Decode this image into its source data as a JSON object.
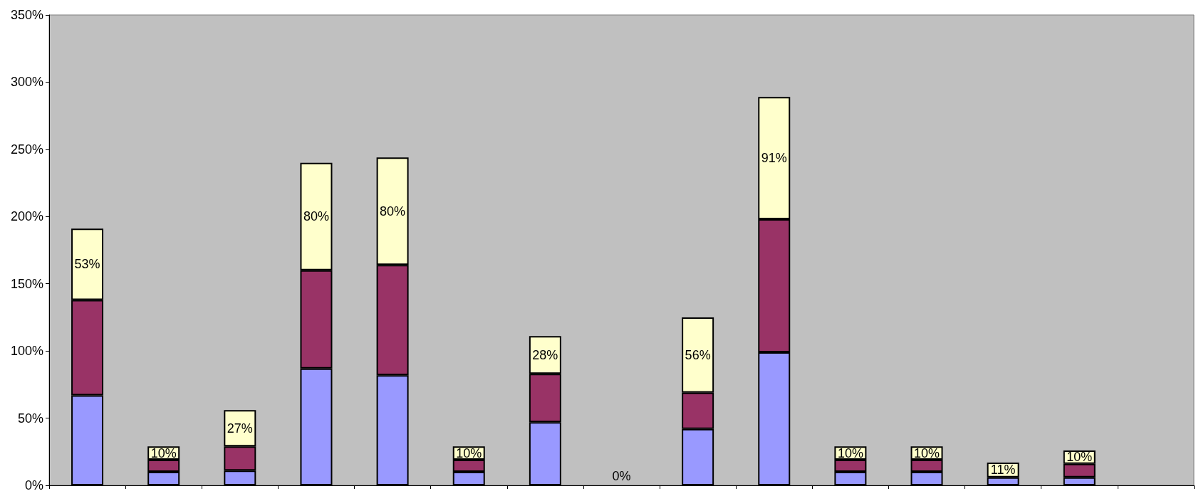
{
  "chart_data": {
    "type": "bar",
    "stacked": true,
    "categories": [
      null,
      null,
      null,
      null,
      null,
      null,
      null,
      null,
      null,
      null,
      null,
      null,
      null,
      null,
      null
    ],
    "series": [
      {
        "color": "#9999ff",
        "values": [
          67,
          10,
          11,
          87,
          82,
          10,
          47,
          0,
          42,
          99,
          10,
          10,
          6,
          6,
          null
        ]
      },
      {
        "color": "#993366",
        "values": [
          71,
          9,
          18,
          73,
          82,
          9,
          36,
          0,
          27,
          99,
          9,
          9,
          0,
          10,
          null
        ]
      },
      {
        "color": "#ffffcc",
        "values": [
          53,
          10,
          27,
          80,
          80,
          10,
          28,
          0,
          56,
          91,
          10,
          10,
          11,
          10,
          null
        ],
        "value_labels": [
          "53%",
          "10%",
          "27%",
          "80%",
          "80%",
          "10%",
          "28%",
          "0%",
          "56%",
          "91%",
          "10%",
          "10%",
          "11%",
          "10%",
          null
        ]
      }
    ],
    "ylim": [
      0,
      350
    ],
    "yticks": [
      {
        "value": 0,
        "label": "0%"
      },
      {
        "value": 50,
        "label": "50%"
      },
      {
        "value": 100,
        "label": "100%"
      },
      {
        "value": 150,
        "label": "150%"
      },
      {
        "value": 200,
        "label": "200%"
      },
      {
        "value": 250,
        "label": "250%"
      },
      {
        "value": 300,
        "label": "300%"
      },
      {
        "value": 350,
        "label": "350%"
      }
    ],
    "grid": false,
    "tick_labels": "y"
  }
}
